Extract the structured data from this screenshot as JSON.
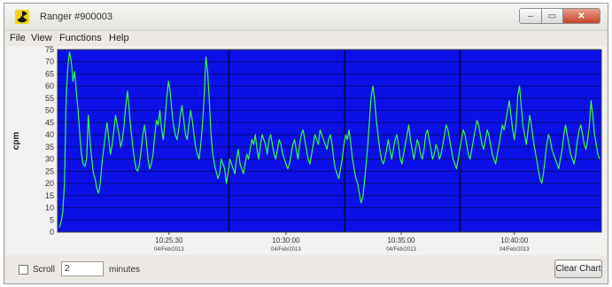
{
  "window": {
    "title": "Ranger #900003",
    "controls": {
      "minimize": "–",
      "maximize": "▭",
      "close": "✕"
    }
  },
  "menu": {
    "items": [
      "File",
      "View",
      "Functions",
      "Help"
    ]
  },
  "chart_data": {
    "type": "line",
    "ylabel": "cpm",
    "y_ticks": [
      0,
      5,
      10,
      15,
      20,
      25,
      30,
      35,
      40,
      45,
      50,
      55,
      60,
      65,
      70,
      75
    ],
    "ylim": [
      0,
      75
    ],
    "x_ticks": [
      {
        "time": "10:25:30",
        "date": "04/Feb/2013"
      },
      {
        "time": "10:30:00",
        "date": "04/Feb/2013"
      },
      {
        "time": "10:35:00",
        "date": "04/Feb/2013"
      },
      {
        "time": "10:40:00",
        "date": "04/Feb/2013"
      }
    ],
    "grid": true,
    "colors": {
      "plot_background": "#0a10e6",
      "line": "#33ff44",
      "grid": "#08087a"
    },
    "series": [
      {
        "values": [
          2,
          4,
          8,
          20,
          55,
          68,
          74,
          70,
          62,
          66,
          58,
          50,
          40,
          32,
          28,
          27,
          30,
          48,
          38,
          30,
          24,
          22,
          18,
          16,
          20,
          28,
          34,
          40,
          45,
          38,
          32,
          36,
          42,
          48,
          44,
          40,
          35,
          38,
          44,
          52,
          58,
          50,
          42,
          36,
          30,
          26,
          25,
          28,
          34,
          40,
          44,
          38,
          30,
          26,
          28,
          32,
          40,
          46,
          44,
          50,
          42,
          38,
          46,
          55,
          62,
          58,
          50,
          44,
          40,
          38,
          42,
          48,
          52,
          46,
          40,
          38,
          44,
          50,
          46,
          40,
          35,
          32,
          30,
          36,
          44,
          56,
          72,
          66,
          54,
          40,
          32,
          28,
          25,
          22,
          24,
          30,
          28,
          26,
          20,
          24,
          30,
          28,
          26,
          24,
          30,
          34,
          28,
          26,
          24,
          28,
          32,
          30,
          34,
          38,
          36,
          40,
          34,
          30,
          36,
          40,
          38,
          36,
          32,
          38,
          40,
          36,
          32,
          30,
          34,
          38,
          36,
          32,
          30,
          28,
          26,
          28,
          32,
          36,
          38,
          34,
          30,
          36,
          40,
          42,
          38,
          34,
          30,
          28,
          32,
          36,
          40,
          38,
          36,
          42,
          40,
          38,
          36,
          34,
          38,
          40,
          36,
          30,
          26,
          24,
          22,
          26,
          30,
          36,
          40,
          38,
          42,
          36,
          30,
          26,
          22,
          20,
          16,
          12,
          14,
          20,
          28,
          36,
          46,
          56,
          60,
          54,
          46,
          40,
          34,
          30,
          28,
          30,
          34,
          38,
          34,
          30,
          34,
          38,
          40,
          36,
          30,
          28,
          32,
          36,
          40,
          44,
          38,
          34,
          30,
          34,
          38,
          36,
          32,
          30,
          34,
          40,
          42,
          38,
          34,
          30,
          32,
          36,
          34,
          30,
          32,
          36,
          40,
          44,
          42,
          38,
          34,
          30,
          28,
          26,
          30,
          34,
          38,
          42,
          40,
          36,
          32,
          30,
          34,
          38,
          42,
          46,
          44,
          40,
          36,
          34,
          38,
          42,
          40,
          36,
          32,
          30,
          28,
          32,
          36,
          40,
          44,
          42,
          46,
          50,
          54,
          48,
          42,
          38,
          44,
          56,
          60,
          52,
          44,
          40,
          36,
          42,
          48,
          44,
          38,
          34,
          30,
          26,
          22,
          20,
          24,
          30,
          36,
          40,
          38,
          34,
          32,
          30,
          28,
          26,
          30,
          34,
          40,
          44,
          40,
          36,
          32,
          30,
          28,
          32,
          38,
          42,
          44,
          40,
          36,
          34,
          38,
          44,
          54,
          48,
          40,
          36,
          32,
          30
        ]
      }
    ]
  },
  "bottom": {
    "scroll_label": "Scroll",
    "minutes_value": "2",
    "minutes_label": "minutes",
    "clear_button": "Clear Chart"
  }
}
